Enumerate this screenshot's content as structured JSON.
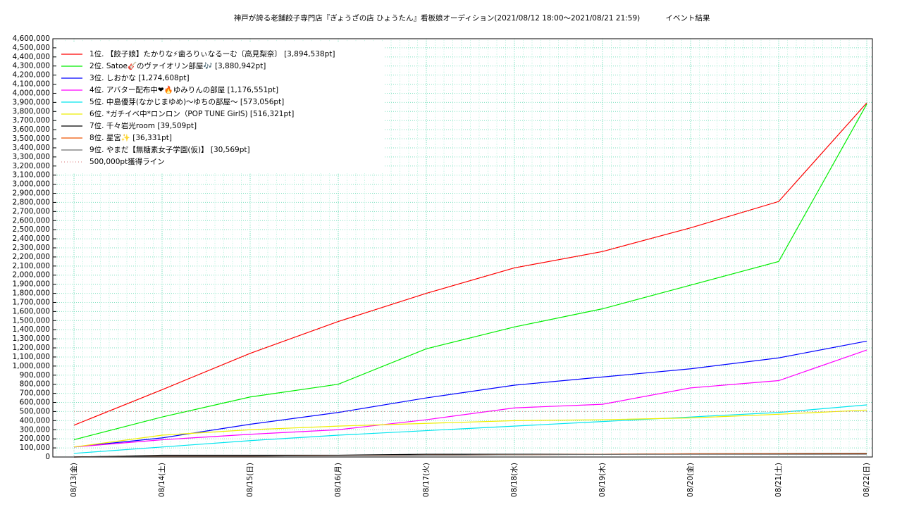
{
  "chart_data": {
    "type": "line",
    "title": "神戸が誇る老舗餃子専門店『ぎょうざの店 ひょうたん』看板娘オーディション(2021/08/12 18:00～2021/08/21 21:59)",
    "subtitle": "イベント結果",
    "x": [
      "08/13(金)",
      "08/14(土)",
      "08/15(日)",
      "08/16(月)",
      "08/17(火)",
      "08/18(水)",
      "08/19(木)",
      "08/20(金)",
      "08/21(土)",
      "08/22(日)"
    ],
    "series": [
      {
        "name": "1位. 【餃子娘】たかりな⚡歯ろりぃなるーむ〔高見梨奈〕 [3,894,538pt]",
        "color": "#ff0000",
        "values": [
          350000,
          740000,
          1140000,
          1490000,
          1800000,
          2080000,
          2260000,
          2520000,
          2810000,
          3894538
        ]
      },
      {
        "name": "2位. Satoe🎸のヴァイオリン部屋🎶 [3,880,942pt]",
        "color": "#00ee00",
        "values": [
          190000,
          440000,
          660000,
          800000,
          1190000,
          1430000,
          1630000,
          1890000,
          2150000,
          3880942
        ]
      },
      {
        "name": "3位. しおかな [1,274,608pt]",
        "color": "#0000ff",
        "values": [
          110000,
          210000,
          360000,
          490000,
          650000,
          790000,
          880000,
          970000,
          1090000,
          1274608
        ]
      },
      {
        "name": "4位. アバター配布中❤🔥ゆみりんの部屋 [1,176,551pt]",
        "color": "#ff00ff",
        "values": [
          110000,
          190000,
          250000,
          300000,
          410000,
          540000,
          580000,
          760000,
          840000,
          1176551
        ]
      },
      {
        "name": "5位. 中島優芽(なかじまゆめ)〜ゆちの部屋〜 [573,056pt]",
        "color": "#00e5ee",
        "values": [
          40000,
          110000,
          180000,
          240000,
          290000,
          340000,
          390000,
          440000,
          490000,
          573056
        ]
      },
      {
        "name": "6位. *ガチイベ中*ロンロン（POP TUNE GirlS) [516,321pt]",
        "color": "#eeee00",
        "values": [
          110000,
          240000,
          300000,
          340000,
          370000,
          400000,
          410000,
          430000,
          470000,
          516321
        ]
      },
      {
        "name": "7位. 千々岩光room [39,509pt]",
        "color": "#000000",
        "values": [
          0,
          20000,
          20000,
          20000,
          30000,
          30000,
          30000,
          35000,
          38000,
          39509
        ]
      },
      {
        "name": "8位. 星宮✨ [36,331pt]",
        "color": "#ee5500",
        "values": [
          0,
          10000,
          10000,
          15000,
          20000,
          25000,
          30000,
          36000,
          36000,
          36331
        ]
      },
      {
        "name": "9位. やまだ【無糖素女子学園(仮)】 [30,569pt]",
        "color": "#707070",
        "values": [
          0,
          10000,
          10000,
          15000,
          20000,
          25000,
          28000,
          30000,
          30000,
          30569
        ]
      },
      {
        "name": "500,000pt獲得ライン",
        "color": "#e09090",
        "dashed": true,
        "values": [
          500000,
          500000,
          500000,
          500000,
          500000,
          500000,
          500000,
          500000,
          500000,
          500000
        ]
      }
    ],
    "ylim": [
      0,
      4600000
    ],
    "yticks": [
      0,
      {
        "value": 100000,
        "label": "100,000"
      },
      {
        "value": 200000,
        "label": "200,000"
      },
      {
        "value": 300000,
        "label": "300,000"
      },
      {
        "value": 400000,
        "label": "400,000"
      },
      {
        "value": 500000,
        "label": "500,000"
      },
      {
        "value": 600000,
        "label": "600,000"
      },
      {
        "value": 700000,
        "label": "700,000"
      },
      {
        "value": 800000,
        "label": "800,000"
      },
      {
        "value": 900000,
        "label": "900,000"
      },
      {
        "value": 1000000,
        "label": "1,000,000"
      },
      {
        "value": 1100000,
        "label": "1,100,000"
      },
      {
        "value": 1200000,
        "label": "1,200,000"
      },
      {
        "value": 1300000,
        "label": "1,300,000"
      },
      {
        "value": 1400000,
        "label": "1,400,000"
      },
      {
        "value": 1500000,
        "label": "1,500,000"
      },
      {
        "value": 1600000,
        "label": "1,600,000"
      },
      {
        "value": 1700000,
        "label": "1,700,000"
      },
      {
        "value": 1800000,
        "label": "1,800,000"
      },
      {
        "value": 1900000,
        "label": "1,900,000"
      },
      {
        "value": 2000000,
        "label": "2,000,000"
      },
      {
        "value": 2100000,
        "label": "2,100,000"
      },
      {
        "value": 2200000,
        "label": "2,200,000"
      },
      {
        "value": 2300000,
        "label": "2,300,000"
      },
      {
        "value": 2400000,
        "label": "2,400,000"
      },
      {
        "value": 2500000,
        "label": "2,500,000"
      },
      {
        "value": 2600000,
        "label": "2,600,000"
      },
      {
        "value": 2700000,
        "label": "2,700,000"
      },
      {
        "value": 2800000,
        "label": "2,800,000"
      },
      {
        "value": 2900000,
        "label": "2,900,000"
      },
      {
        "value": 3000000,
        "label": "3,000,000"
      },
      {
        "value": 3100000,
        "label": "3,100,000"
      },
      {
        "value": 3200000,
        "label": "3,200,000"
      },
      {
        "value": 3300000,
        "label": "3,300,000"
      },
      {
        "value": 3400000,
        "label": "3,400,000"
      },
      {
        "value": 3500000,
        "label": "3,500,000"
      },
      {
        "value": 3600000,
        "label": "3,600,000"
      },
      {
        "value": 3700000,
        "label": "3,700,000"
      },
      {
        "value": 3800000,
        "label": "3,800,000"
      },
      {
        "value": 3900000,
        "label": "3,900,000"
      },
      {
        "value": 4000000,
        "label": "4,000,000"
      },
      {
        "value": 4100000,
        "label": "4,100,000"
      },
      {
        "value": 4200000,
        "label": "4,200,000"
      },
      {
        "value": 4300000,
        "label": "4,300,000"
      },
      {
        "value": 4400000,
        "label": "4,400,000"
      },
      {
        "value": 4500000,
        "label": "4,500,000"
      },
      {
        "value": 4600000,
        "label": "4,600,000"
      }
    ],
    "grid": true,
    "legend": "top-left"
  }
}
